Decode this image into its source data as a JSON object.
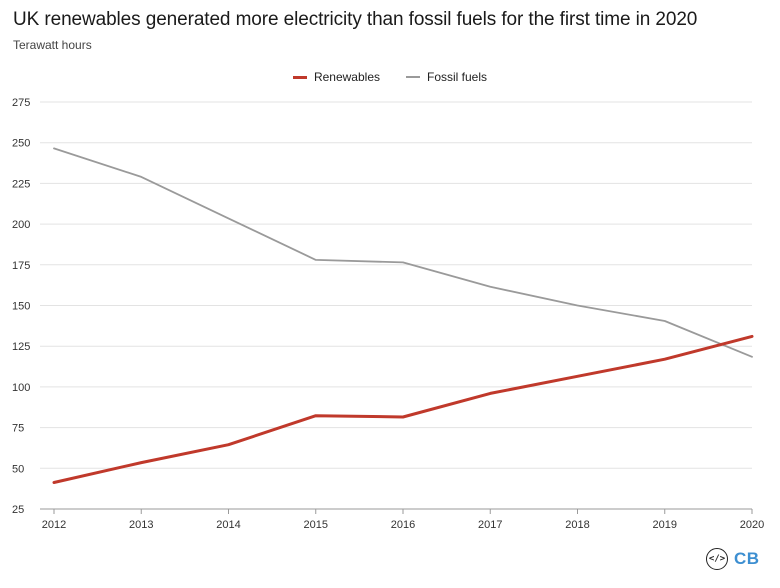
{
  "chart_data": {
    "type": "line",
    "title": "UK renewables generated more electricity than fossil fuels for the first time in 2020",
    "subtitle": "Terawatt hours",
    "xlabel": "",
    "ylabel": "Terawatt hours",
    "x": [
      "2012",
      "2013",
      "2014",
      "2015",
      "2016",
      "2017",
      "2018",
      "2019",
      "2020"
    ],
    "ylim": [
      25,
      275
    ],
    "yticks": [
      25,
      50,
      75,
      100,
      125,
      150,
      175,
      200,
      225,
      250,
      275
    ],
    "grid": true,
    "legend_position": "top-center",
    "series": [
      {
        "name": "Renewables",
        "color": "#c0392b",
        "values": [
          41.3,
          53.5,
          64.5,
          82.3,
          81.5,
          96.0,
          106.5,
          117.0,
          131.0
        ]
      },
      {
        "name": "Fossil fuels",
        "color": "#9a9a9a",
        "values": [
          246.5,
          229.0,
          203.5,
          178.0,
          176.5,
          161.5,
          150.0,
          140.5,
          118.5
        ]
      }
    ]
  },
  "logo": {
    "glyph": "</>",
    "text": "CB",
    "icon": "carbon-brief-code-icon"
  }
}
